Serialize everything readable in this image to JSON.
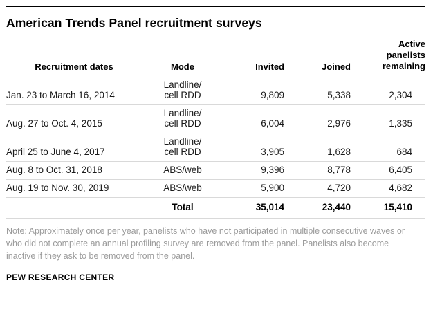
{
  "title": "American Trends Panel recruitment surveys",
  "table": {
    "headers": {
      "dates": "Recruitment dates",
      "mode": "Mode",
      "invited": "Invited",
      "joined": "Joined",
      "remaining": "Active panelists remaining"
    },
    "rows": [
      {
        "dates": "Jan. 23 to March 16, 2014",
        "mode": "Landline/\ncell RDD",
        "invited": "9,809",
        "joined": "5,338",
        "remaining": "2,304"
      },
      {
        "dates": "Aug. 27 to Oct. 4, 2015",
        "mode": "Landline/\ncell RDD",
        "invited": "6,004",
        "joined": "2,976",
        "remaining": "1,335"
      },
      {
        "dates": "April 25 to June 4, 2017",
        "mode": "Landline/\ncell RDD",
        "invited": "3,905",
        "joined": "1,628",
        "remaining": "684"
      },
      {
        "dates": "Aug. 8 to Oct. 31, 2018",
        "mode": "ABS/web",
        "invited": "9,396",
        "joined": "8,778",
        "remaining": "6,405"
      },
      {
        "dates": "Aug. 19 to Nov. 30, 2019",
        "mode": "ABS/web",
        "invited": "5,900",
        "joined": "4,720",
        "remaining": "4,682"
      }
    ],
    "total": {
      "label": "Total",
      "invited": "35,014",
      "joined": "23,440",
      "remaining": "15,410"
    }
  },
  "note": "Note: Approximately once per year, panelists who have not participated in multiple consecutive waves or who did not complete an annual profiling survey are removed from the panel. Panelists also become inactive if they ask to be removed from the panel.",
  "source": "PEW RESEARCH CENTER",
  "colors": {
    "top_rule": "#000000",
    "row_border": "#d9d9d9",
    "note_gray": "#9b9b9b"
  },
  "chart_data": {
    "type": "table",
    "title": "American Trends Panel recruitment surveys",
    "columns": [
      "Recruitment dates",
      "Mode",
      "Invited",
      "Joined",
      "Active panelists remaining"
    ],
    "rows": [
      [
        "Jan. 23 to March 16, 2014",
        "Landline/cell RDD",
        9809,
        5338,
        2304
      ],
      [
        "Aug. 27 to Oct. 4, 2015",
        "Landline/cell RDD",
        6004,
        2976,
        1335
      ],
      [
        "April 25 to June 4, 2017",
        "Landline/cell RDD",
        3905,
        1628,
        684
      ],
      [
        "Aug. 8 to Oct. 31, 2018",
        "ABS/web",
        9396,
        8778,
        6405
      ],
      [
        "Aug. 19 to Nov. 30, 2019",
        "ABS/web",
        5900,
        4720,
        4682
      ]
    ],
    "total_row": [
      "",
      "Total",
      35014,
      23440,
      15410
    ],
    "note": "Note: Approximately once per year, panelists who have not participated in multiple consecutive waves or who did not complete an annual profiling survey are removed from the panel. Panelists also become inactive if they ask to be removed from the panel.",
    "source": "PEW RESEARCH CENTER"
  }
}
